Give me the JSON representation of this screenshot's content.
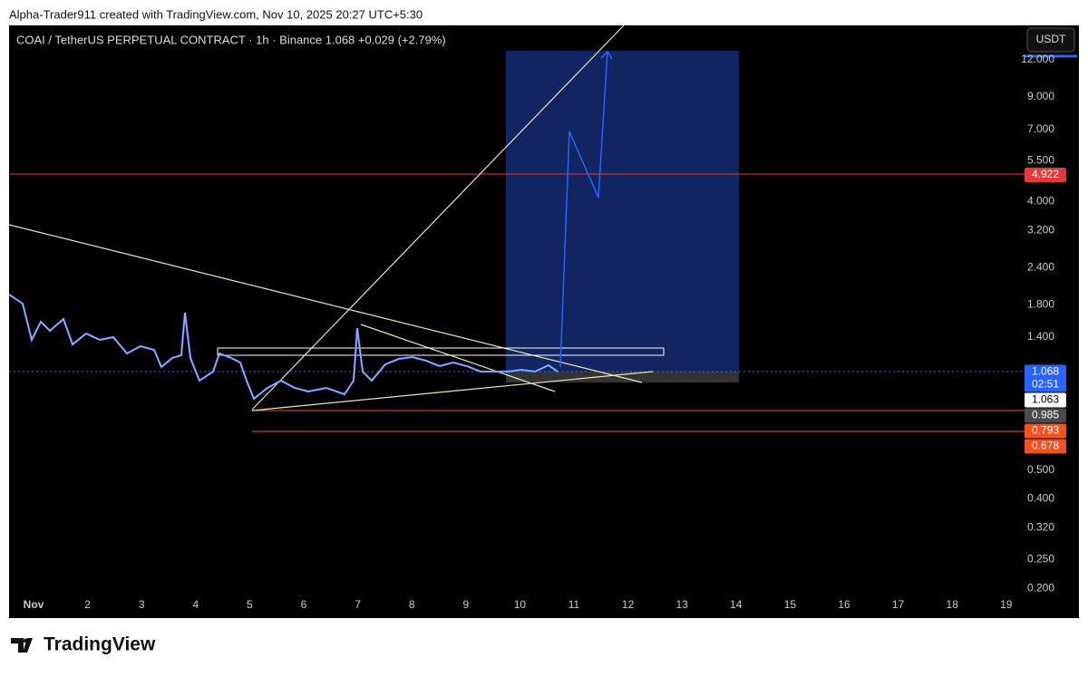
{
  "header": {
    "credit": "Alpha-Trader911 created with TradingView.com, Nov 10, 2025 20:27 UTC+5:30"
  },
  "chart": {
    "symbol_line": "COAI / TetherUS PERPETUAL CONTRACT · 1h · Binance  1.068  +0.029 (+2.79%)",
    "currency_button": "USDT"
  },
  "price_axis": [
    "12.000",
    "9.000",
    "7.000",
    "5.500",
    "4.000",
    "3.200",
    "2.400",
    "1.800",
    "1.400",
    "0.500",
    "0.400",
    "0.320",
    "0.250",
    "0.200"
  ],
  "price_tags": [
    {
      "text": "4.922",
      "color": "#e53935"
    },
    {
      "text": "1.068",
      "sub": "02:51",
      "color": "#2962ff"
    },
    {
      "text": "1.063",
      "color": "#ffffff"
    },
    {
      "text": "0.985",
      "color": "#4a4a4a"
    },
    {
      "text": "0.793",
      "color": "#f4511e"
    },
    {
      "text": "0.678",
      "color": "#f4511e"
    }
  ],
  "time_axis": [
    "Nov",
    "2",
    "3",
    "4",
    "5",
    "6",
    "7",
    "8",
    "9",
    "10",
    "11",
    "12",
    "13",
    "14",
    "15",
    "16",
    "17",
    "18",
    "19"
  ],
  "footer": {
    "brand": "TradingView"
  }
}
